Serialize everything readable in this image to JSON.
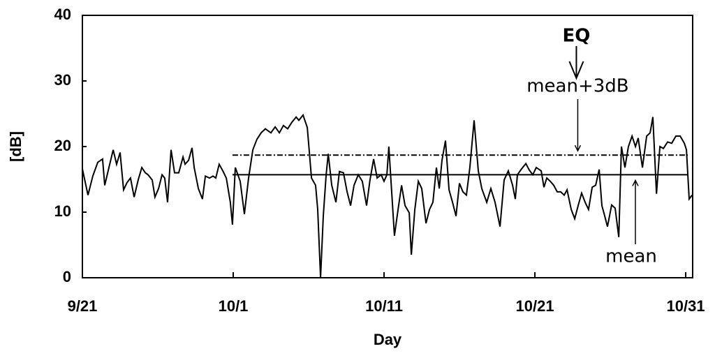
{
  "chart_data": {
    "type": "line",
    "x_label": "Day",
    "y_label": "[dB]",
    "xlim": [
      0,
      40.46
    ],
    "ylim": [
      0,
      40
    ],
    "xticks": [
      {
        "value": 0,
        "label": "9/21"
      },
      {
        "value": 10,
        "label": "10/1"
      },
      {
        "value": 20,
        "label": "10/11"
      },
      {
        "value": 30,
        "label": "10/21"
      },
      {
        "value": 40,
        "label": "10/31"
      }
    ],
    "yticks": [
      0,
      10,
      20,
      30,
      40
    ],
    "color": "#000000",
    "x": [
      0,
      0.37,
      0.69,
      1.02,
      1.34,
      1.48,
      1.76,
      2.04,
      2.27,
      2.5,
      2.73,
      2.96,
      3.19,
      3.43,
      3.7,
      3.94,
      4.17,
      4.35,
      4.63,
      4.81,
      5.05,
      5.28,
      5.46,
      5.65,
      5.88,
      6.11,
      6.39,
      6.67,
      6.81,
      7.04,
      7.27,
      7.41,
      7.69,
      7.96,
      8.15,
      8.43,
      8.66,
      8.84,
      9.07,
      9.31,
      9.54,
      9.81,
      9.95,
      10.14,
      10.46,
      10.74,
      11.02,
      11.3,
      11.57,
      11.85,
      12.13,
      12.5,
      12.78,
      13.06,
      13.33,
      13.61,
      13.89,
      14.17,
      14.35,
      14.63,
      14.91,
      15.19,
      15.46,
      15.6,
      15.79,
      15.97,
      16.16,
      16.3,
      16.53,
      16.81,
      17.04,
      17.31,
      17.55,
      17.78,
      18.01,
      18.29,
      18.56,
      18.84,
      19.07,
      19.31,
      19.54,
      19.81,
      20,
      20.19,
      20.32,
      20.46,
      20.69,
      20.93,
      21.16,
      21.39,
      21.67,
      21.81,
      22.04,
      22.27,
      22.5,
      22.78,
      23.01,
      23.24,
      23.47,
      23.66,
      23.84,
      24.07,
      24.31,
      24.54,
      24.77,
      25,
      25.23,
      25.46,
      25.69,
      25.97,
      26.25,
      26.48,
      26.81,
      27.08,
      27.36,
      27.69,
      27.96,
      28.24,
      28.52,
      28.7,
      28.84,
      29.12,
      29.4,
      29.63,
      29.86,
      30.09,
      30.42,
      30.6,
      30.79,
      31.02,
      31.25,
      31.48,
      31.71,
      31.94,
      32.13,
      32.41,
      32.64,
      32.87,
      33.1,
      33.33,
      33.56,
      33.8,
      34.03,
      34.26,
      34.44,
      34.63,
      34.81,
      35.09,
      35.32,
      35.56,
      35.74,
      35.97,
      36.2,
      36.44,
      36.67,
      36.85,
      37.13,
      37.41,
      37.64,
      37.82,
      38.06,
      38.29,
      38.52,
      38.8,
      39.07,
      39.35,
      39.63,
      39.91,
      40.05,
      40.23,
      40.42
    ],
    "values": [
      16.6,
      12.6,
      15.5,
      17.6,
      18.1,
      14.1,
      16.8,
      19.5,
      17.3,
      19.1,
      13.4,
      14.5,
      15.2,
      12.3,
      14.9,
      16.8,
      16,
      15.7,
      14.9,
      12.3,
      13.6,
      15.7,
      15.2,
      11.5,
      19.5,
      16,
      16,
      18.4,
      17.3,
      17.9,
      19.8,
      16.8,
      13.6,
      12,
      15.5,
      15.2,
      15.5,
      15.2,
      17.3,
      16.3,
      15.2,
      11.5,
      8.1,
      16.8,
      14.7,
      9.7,
      15.2,
      19.5,
      21.1,
      22.1,
      22.7,
      22.1,
      23,
      22.1,
      23.2,
      22.7,
      23.7,
      24.5,
      24,
      24.8,
      22.9,
      15.2,
      14.1,
      10.4,
      0,
      9.4,
      15.7,
      18.9,
      14.1,
      11.5,
      16.2,
      16,
      13.1,
      11,
      14.1,
      15.7,
      14.7,
      11,
      14.9,
      18.1,
      15.2,
      15.7,
      14.7,
      15.7,
      20,
      14.7,
      6.4,
      10.4,
      14.1,
      11,
      9.9,
      3.5,
      10.4,
      14.7,
      13.6,
      8.3,
      10.4,
      11.5,
      16.8,
      13.6,
      17.9,
      20.9,
      13.4,
      11.5,
      9.4,
      14.4,
      13.1,
      12.6,
      16.8,
      24,
      16.3,
      13.6,
      11.5,
      13.6,
      11.5,
      7.8,
      14.9,
      16.3,
      14.1,
      12,
      15.7,
      16.6,
      17.4,
      16.4,
      15.7,
      16.8,
      16.3,
      13.8,
      15.2,
      14.7,
      14.1,
      13.1,
      13.1,
      12.6,
      13.4,
      10.4,
      9,
      11,
      12.9,
      11.5,
      10.4,
      13.8,
      14.1,
      16.5,
      11,
      9.4,
      7.8,
      11.1,
      10.6,
      6.2,
      20,
      16.8,
      20,
      21.6,
      20,
      21.3,
      16.8,
      21.6,
      22.1,
      24.5,
      12.8,
      20,
      19.7,
      20.7,
      20.5,
      21.6,
      21.6,
      20.5,
      19.5,
      12,
      12.6
    ],
    "reference_lines": [
      {
        "name": "mean",
        "value": 15.7,
        "x": [
          9.95,
          40.14
        ],
        "dashed": false
      },
      {
        "name": "mean+3dB",
        "value": 18.7,
        "x": [
          9.95,
          40.14
        ],
        "dashed": true
      }
    ],
    "event": {
      "label": "EQ",
      "x": 32.75
    }
  }
}
